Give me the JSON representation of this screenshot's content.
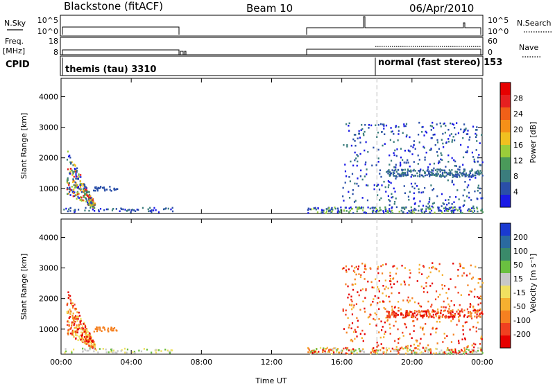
{
  "header": {
    "station": "Blackstone (fitACF)",
    "beam": "Beam 10",
    "date": "06/Apr/2010"
  },
  "strip_labels": {
    "nsky": "N.Sky",
    "nsky_ticks": [
      "10^5",
      "10^0"
    ],
    "nsearch": "N.Search",
    "nsearch_ticks": [
      "10^5",
      "10^0"
    ],
    "freq": "Freq.",
    "freq_unit": "[MHz]",
    "freq_ticks": [
      "18",
      "8"
    ],
    "nave": "Nave",
    "nave_ticks": [
      "60",
      "0"
    ],
    "cpid": "CPID",
    "cpid_left": "themis (tau) 3310",
    "cpid_right": "normal (fast stereo) 153"
  },
  "chart_data": [
    {
      "type": "heatmap",
      "name": "power-panel",
      "ylabel": "Slant Range [km]",
      "xlabel": "",
      "x_ticks": [
        "00:00",
        "04:00",
        "08:00",
        "12:00",
        "16:00",
        "20:00",
        "00:00"
      ],
      "x_range_hours": [
        0,
        24
      ],
      "y_range_km": [
        180,
        4600
      ],
      "y_ticks": [
        1000,
        2000,
        3000,
        4000
      ],
      "colorbar": {
        "label": "Power [dB]",
        "ticks": [
          "4",
          "8",
          "12",
          "16",
          "20",
          "24",
          "28"
        ],
        "colors": [
          "#1a1ae6",
          "#2a4fa8",
          "#3b7d7d",
          "#4a9a5a",
          "#9acd3a",
          "#f0c020",
          "#f59018",
          "#f06018",
          "#e62020",
          "#e60000"
        ]
      }
    },
    {
      "type": "heatmap",
      "name": "velocity-panel",
      "ylabel": "Slant Range [km]",
      "xlabel": "Time UT",
      "x_ticks": [
        "00:00",
        "04:00",
        "08:00",
        "12:00",
        "16:00",
        "20:00",
        "00:00"
      ],
      "x_range_hours": [
        0,
        24
      ],
      "y_range_km": [
        180,
        4600
      ],
      "y_ticks": [
        1000,
        2000,
        3000,
        4000
      ],
      "colorbar": {
        "label": "Velocity [m s⁻¹]",
        "ticks": [
          "200",
          "100",
          "50",
          "15",
          "-15",
          "-50",
          "-100",
          "-200"
        ],
        "colors": [
          "#1a3ad0",
          "#2a6aa0",
          "#3a8a6a",
          "#6ac040",
          "#c8c8c8",
          "#f0e060",
          "#f5b030",
          "#f58020",
          "#f04020",
          "#e60000"
        ]
      }
    }
  ]
}
